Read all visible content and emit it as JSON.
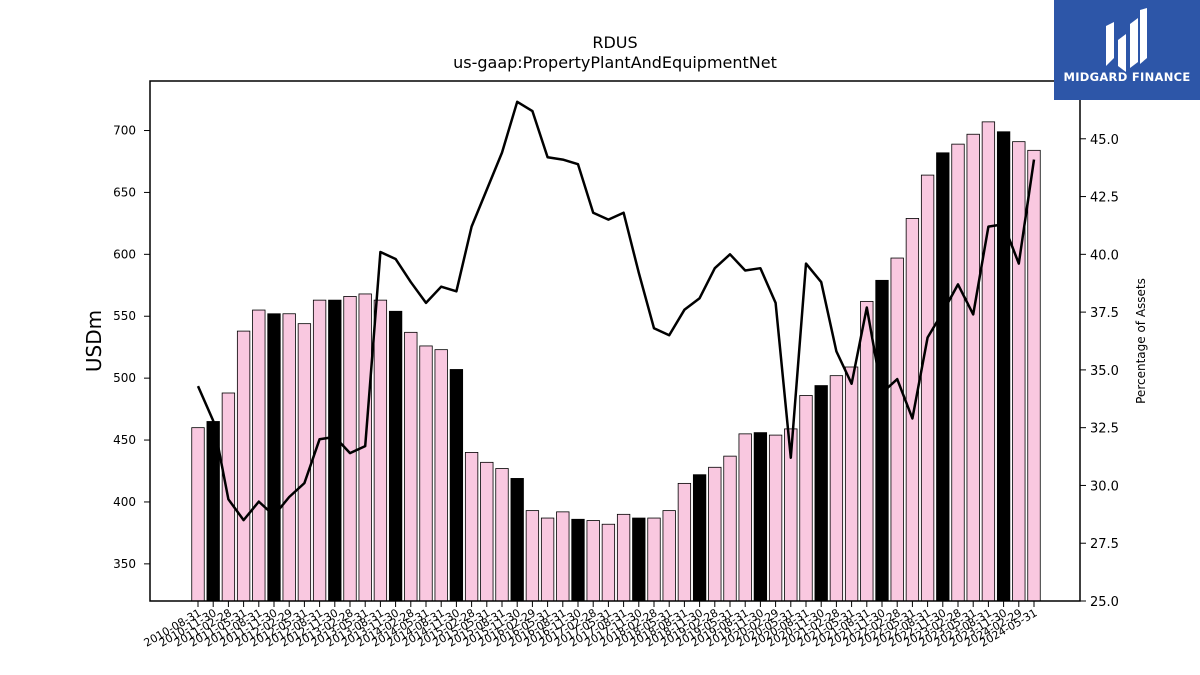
{
  "chart_data": {
    "type": "bar",
    "title": "RDUS",
    "subtitle": "us-gaap:PropertyPlantAndEquipmentNet",
    "ylabel": "USDm",
    "y2label": "Percentage of Assets",
    "ylim": [
      320,
      740
    ],
    "y2lim": [
      25.0,
      47.5
    ],
    "yticks": [
      350,
      400,
      450,
      500,
      550,
      600,
      650,
      700
    ],
    "y2ticks": [
      "25.0",
      "27.5",
      "30.0",
      "32.5",
      "35.0",
      "37.5",
      "40.0",
      "42.5",
      "45.0"
    ],
    "categories": [
      "2010-08-31",
      "2010-11-30",
      "2011-02-28",
      "2011-05-31",
      "2011-08-31",
      "2011-11-30",
      "2012-02-29",
      "2012-05-31",
      "2012-08-31",
      "2012-11-30",
      "2013-02-28",
      "2013-05-31",
      "2013-08-31",
      "2013-11-30",
      "2014-02-28",
      "2014-05-31",
      "2014-08-31",
      "2014-11-30",
      "2015-02-28",
      "2015-05-31",
      "2015-08-31",
      "2015-11-30",
      "2016-02-29",
      "2016-05-31",
      "2016-08-31",
      "2016-11-30",
      "2017-02-28",
      "2017-05-31",
      "2017-08-31",
      "2017-11-30",
      "2018-02-28",
      "2018-05-31",
      "2018-08-31",
      "2018-11-30",
      "2019-02-28",
      "2019-05-31",
      "2019-08-31",
      "2019-11-30",
      "2020-02-29",
      "2020-05-31",
      "2020-08-31",
      "2020-11-30",
      "2021-02-28",
      "2021-05-31",
      "2021-08-31",
      "2021-11-30",
      "2022-02-28",
      "2022-05-31",
      "2022-08-31",
      "2022-11-30",
      "2023-02-28",
      "2023-05-31",
      "2023-08-31",
      "2023-11-30",
      "2024-02-29",
      "2024-05-31"
    ],
    "series": [
      {
        "values": [
          460,
          465,
          488,
          538,
          555,
          552,
          552,
          544,
          563,
          563,
          566,
          568,
          563,
          554,
          537,
          526,
          523,
          507,
          440,
          432,
          427,
          419,
          393,
          387,
          392,
          386,
          385,
          382,
          390,
          387,
          387,
          393,
          415,
          422,
          428,
          437,
          455,
          456,
          454,
          459,
          486,
          494,
          502,
          509,
          562,
          579,
          597,
          629,
          664,
          682,
          689,
          697,
          707,
          699,
          691,
          684
        ],
        "highlight": [
          false,
          true,
          false,
          false,
          false,
          true,
          false,
          false,
          false,
          true,
          false,
          false,
          false,
          true,
          false,
          false,
          false,
          true,
          false,
          false,
          false,
          true,
          false,
          false,
          false,
          true,
          false,
          false,
          false,
          true,
          false,
          false,
          false,
          true,
          false,
          false,
          false,
          true,
          false,
          false,
          false,
          true,
          false,
          false,
          false,
          true,
          false,
          false,
          false,
          true,
          false,
          false,
          false,
          true,
          false,
          false
        ],
        "bar_color": "#f9c8e0",
        "highlight_color": "#000000"
      },
      {
        "axis": "right",
        "color": "#000000",
        "values": [
          34.3,
          32.8,
          29.4,
          28.5,
          29.3,
          28.7,
          29.5,
          30.1,
          32.0,
          32.1,
          31.4,
          31.7,
          40.1,
          39.8,
          38.8,
          37.9,
          38.6,
          38.4,
          41.2,
          42.8,
          44.4,
          46.6,
          46.2,
          44.2,
          44.1,
          43.9,
          41.8,
          41.5,
          41.8,
          39.2,
          36.8,
          36.5,
          37.6,
          38.1,
          39.4,
          40.0,
          39.3,
          39.4,
          37.9,
          31.2,
          39.6,
          38.8,
          35.8,
          34.4,
          37.7,
          34.0,
          34.6,
          32.9,
          36.4,
          37.5,
          38.7,
          37.4,
          41.2,
          41.3,
          39.6,
          44.1
        ]
      }
    ]
  },
  "logo": {
    "text": "MIDGARD FINANCE",
    "bg_color": "#2d56a8"
  }
}
